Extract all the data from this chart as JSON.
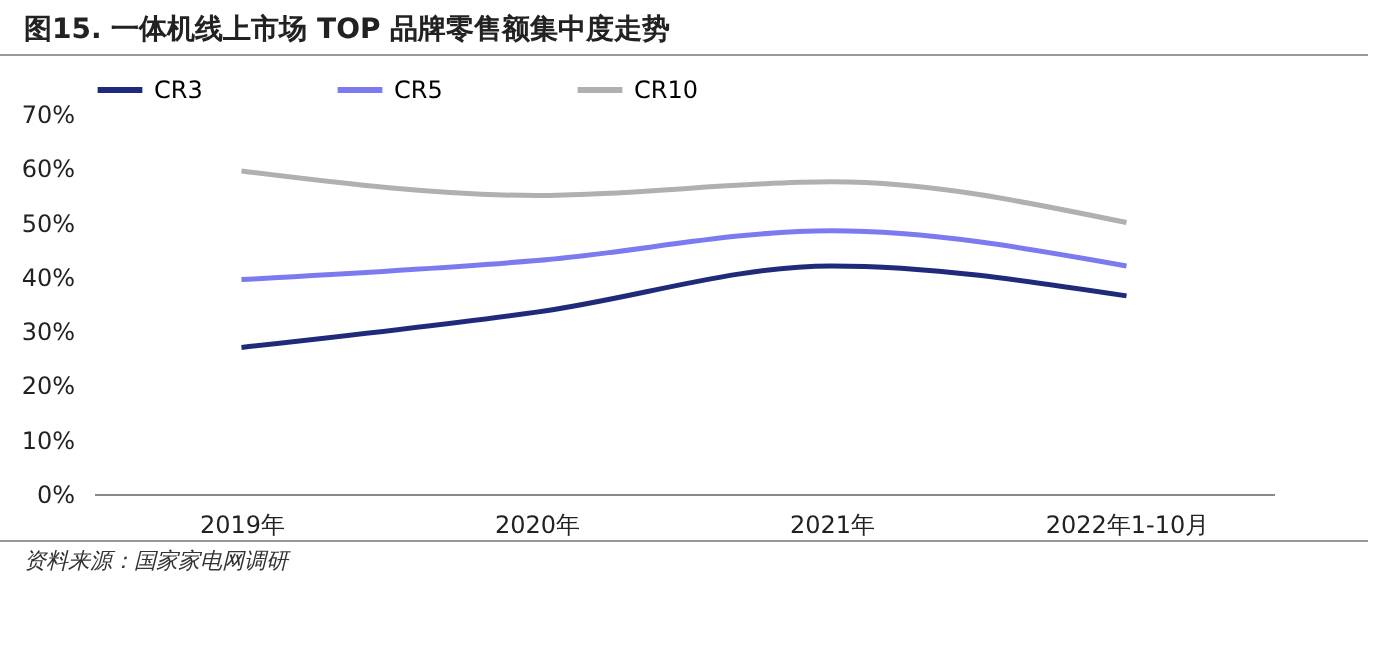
{
  "chart_data": {
    "type": "line",
    "title": "图15. 一体机线上市场 TOP 品牌零售额集中度走势",
    "categories": [
      "2019年",
      "2020年",
      "2021年",
      "2022年1-10月"
    ],
    "series": [
      {
        "name": "CR3",
        "color": "#1f2a7a",
        "values": [
          27,
          33.5,
          42,
          36.5
        ]
      },
      {
        "name": "CR5",
        "color": "#7b7bef",
        "values": [
          39.5,
          43,
          48.5,
          42
        ]
      },
      {
        "name": "CR10",
        "color": "#b0b0b0",
        "values": [
          59.5,
          55,
          57.5,
          50
        ]
      }
    ],
    "ylim": [
      0,
      70
    ],
    "yticks": [
      {
        "value": 0,
        "label": "0%"
      },
      {
        "value": 10,
        "label": "10%"
      },
      {
        "value": 20,
        "label": "20%"
      },
      {
        "value": 30,
        "label": "30%"
      },
      {
        "value": 40,
        "label": "40%"
      },
      {
        "value": 50,
        "label": "50%"
      },
      {
        "value": 60,
        "label": "60%"
      },
      {
        "value": 70,
        "label": "70%"
      }
    ],
    "grid": false,
    "legend": "top",
    "marker": "none",
    "line_style": "solid",
    "annotations": [
      "资料来源：国家家电网调研"
    ]
  }
}
